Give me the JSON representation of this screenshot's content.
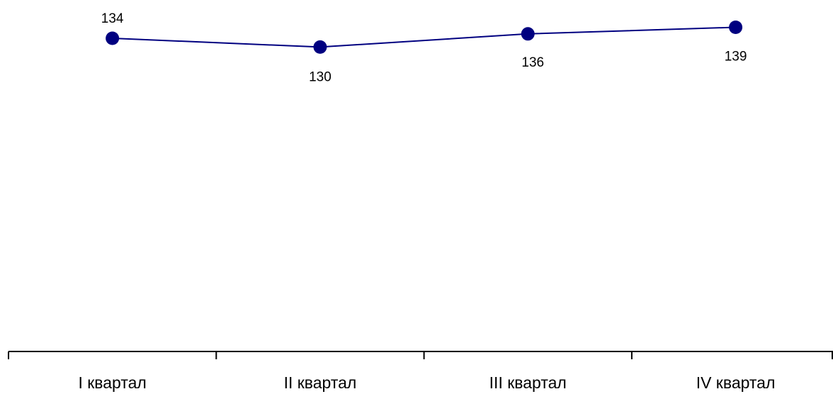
{
  "chart_data": {
    "type": "line",
    "categories": [
      "I квартал",
      "II квартал",
      "III квартал",
      "IV квартал"
    ],
    "series": [
      {
        "values": [
          134,
          130,
          136,
          139
        ],
        "color": "#000080"
      }
    ],
    "data_labels": [
      "134",
      "130",
      "136",
      "139"
    ],
    "title": "",
    "xlabel": "",
    "ylabel": "",
    "y_axis_visible": false,
    "grid": false,
    "legend": "none"
  }
}
